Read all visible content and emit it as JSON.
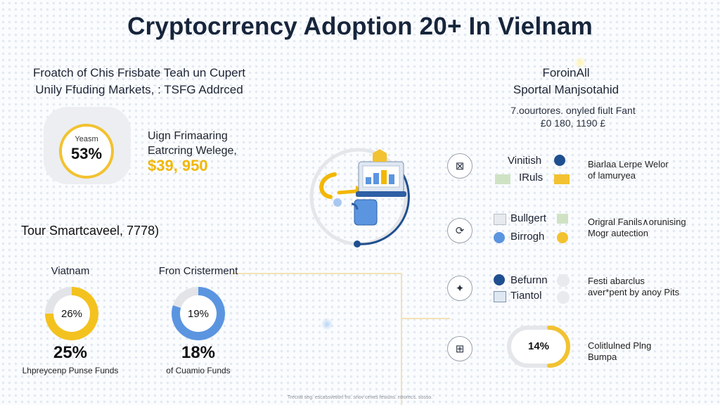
{
  "title": "Cryptocrrency Adoption 20+ In Vielnam",
  "left_header": {
    "line1": "Froatch of Chis Frisbate Teah un Cupert",
    "line2": "Unily Ffuding Markets, : TSFG Addrced"
  },
  "badge": {
    "label": "Yeasm",
    "value": "53%"
  },
  "middle_text": {
    "line1": "Uign Frimaaring",
    "line2": "Eatrcring Welege,",
    "amount": "$39, 950"
  },
  "tour_label": "Tour Smartcaveel, 7778)",
  "donuts": [
    {
      "label": "Viatnam",
      "center": "26%",
      "big": "25%",
      "caption": "Lhpreycenp Punse Funds",
      "fraction": 0.75,
      "color": "#f3c21f"
    },
    {
      "label": "Fron Cristerment",
      "center": "19%",
      "big": "18%",
      "caption": "of Cuamio Funds",
      "fraction": 0.8,
      "color": "#5b95e0"
    }
  ],
  "right_header": {
    "line1": "ForoinAll",
    "line2": "Sportal Manjsotahid"
  },
  "right_sub": {
    "line1": "7.oourtores. onyled fiult Fant",
    "line2": "£0 180, 1190 £"
  },
  "right_items": [
    {
      "icon": "wallet-icon",
      "glyph": "⊠",
      "name1": "Vinitish",
      "name2": "IRuls",
      "desc1": "Biarlaa Lerpe Welor",
      "desc2": "of lamuryea"
    },
    {
      "icon": "refresh-icon",
      "glyph": "⟳",
      "name1": "Bullgert",
      "name2": "Birrogh",
      "desc1": "Origral Fanils∧orunising",
      "desc2": "Mogr autection"
    },
    {
      "icon": "network-icon",
      "glyph": "✦",
      "name1": "Befurnn",
      "name2": "Tiantol",
      "desc1": "Festi abarclus",
      "desc2": "aver*pent by anoy Pits"
    },
    {
      "icon": "grid-icon",
      "glyph": "⊞",
      "desc1": "Colitlulned Plng",
      "desc2": "Bumpa"
    }
  ],
  "gauge": {
    "value": "14%",
    "fraction": 0.14
  },
  "footer": "Trecrat seg. escassvetiorl fro. snov cenes fesiuns. ntrorecs. sosso."
}
